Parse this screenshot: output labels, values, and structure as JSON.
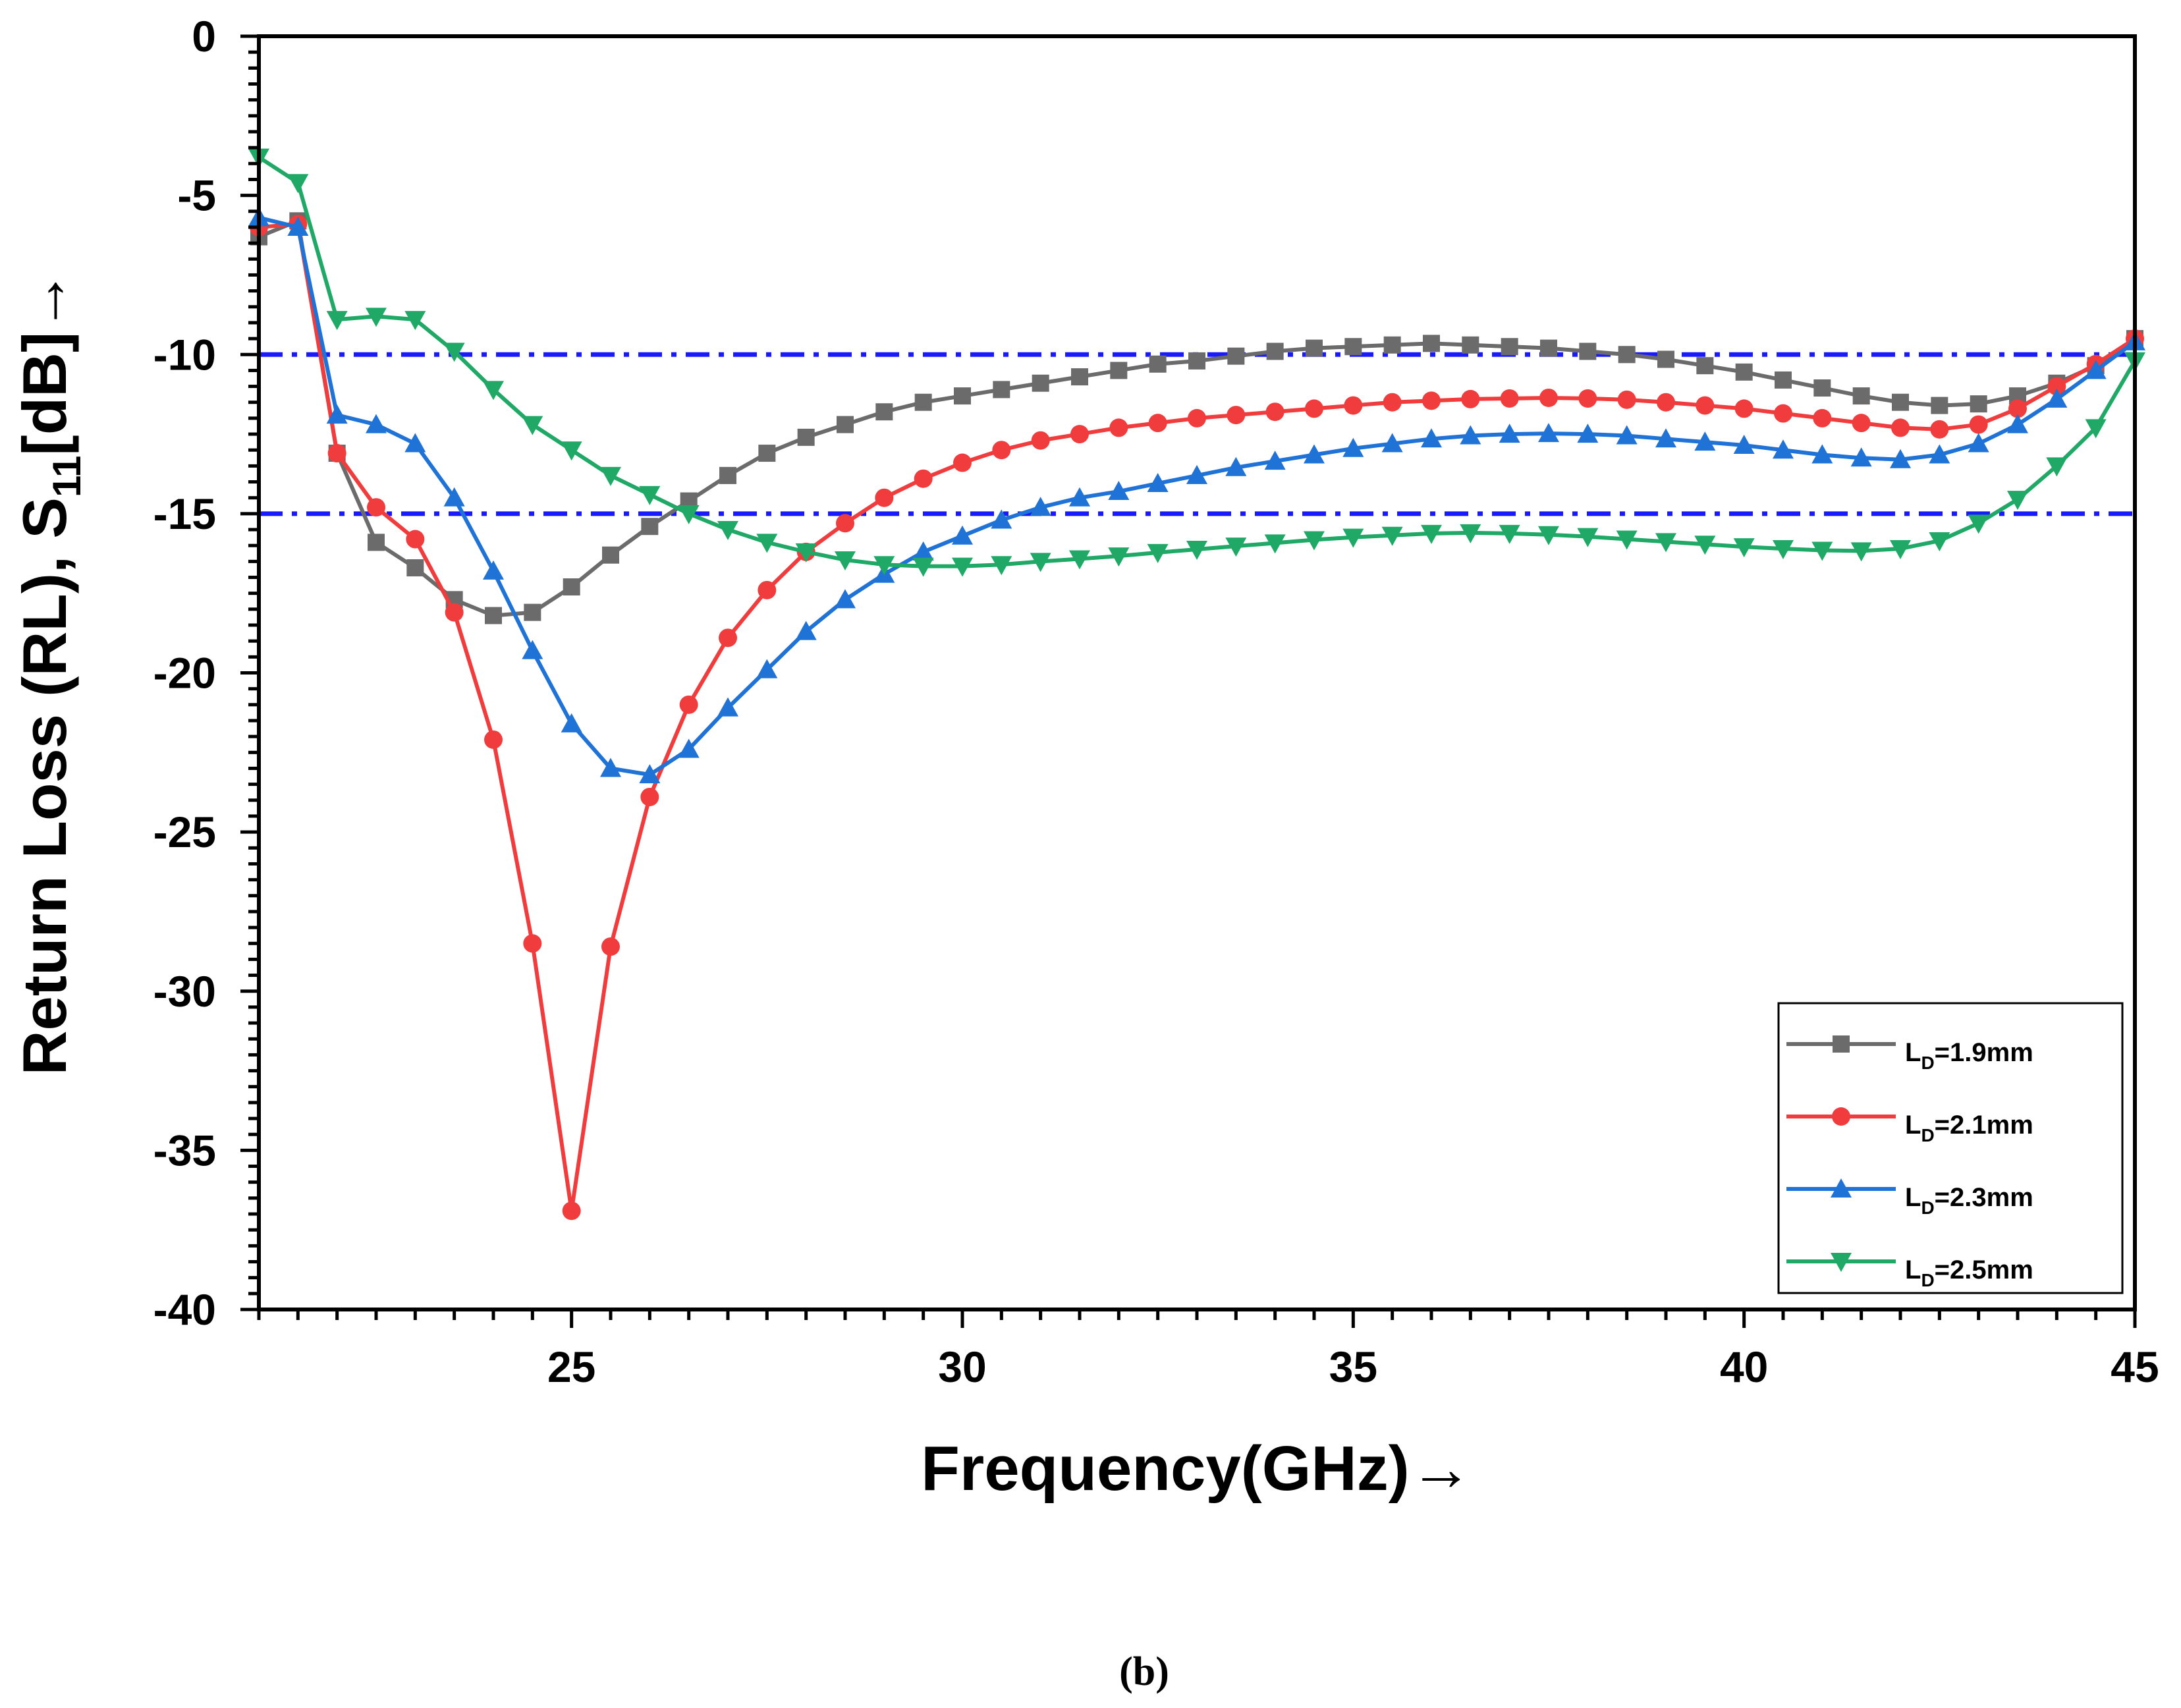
{
  "chart_data": {
    "type": "line",
    "title": "",
    "caption": "(b)",
    "xlabel": "Frequency(GHz)",
    "xlabel_arrow": "→",
    "ylabel_parts": [
      "Return Loss (RL), S",
      "11",
      "[dB]",
      "→"
    ],
    "xlim": [
      21,
      45
    ],
    "ylim": [
      -40,
      0
    ],
    "x_ticks": [
      25,
      30,
      35,
      40,
      45
    ],
    "x_tick_labels": [
      "25",
      "30",
      "35",
      "40",
      "45"
    ],
    "y_ticks": [
      0,
      -5,
      -10,
      -15,
      -20,
      -25,
      -30,
      -35,
      -40
    ],
    "y_tick_labels": [
      "0",
      "-5",
      "-10",
      "-15",
      "-20",
      "-25",
      "-30",
      "-35",
      "-40"
    ],
    "reference_lines": [
      {
        "y": -10,
        "color": "#1a1aff",
        "style": "dash-dot"
      },
      {
        "y": -15,
        "color": "#1a1aff",
        "style": "dash-dot"
      }
    ],
    "legend_position": "bottom-right",
    "x": [
      21,
      21.5,
      22,
      22.5,
      23,
      23.5,
      24,
      24.5,
      25,
      25.5,
      26,
      26.5,
      27,
      27.5,
      28,
      28.5,
      29,
      29.5,
      30,
      30.5,
      31,
      31.5,
      32,
      32.5,
      33,
      33.5,
      34,
      34.5,
      35,
      35.5,
      36,
      36.5,
      37,
      37.5,
      38,
      38.5,
      39,
      39.5,
      40,
      40.5,
      41,
      41.5,
      42,
      42.5,
      43,
      43.5,
      44,
      44.5,
      45
    ],
    "series": [
      {
        "name": "LD=1.9mm",
        "legend_main": "L",
        "legend_sub": "D",
        "legend_rest": "=1.9mm",
        "color": "#6b6b6b",
        "marker": "square",
        "values": [
          -6.3,
          -5.8,
          -13.1,
          -15.9,
          -16.7,
          -17.7,
          -18.2,
          -18.1,
          -17.3,
          -16.3,
          -15.4,
          -14.6,
          -13.8,
          -13.1,
          -12.6,
          -12.2,
          -11.8,
          -11.5,
          -11.3,
          -11.1,
          -10.9,
          -10.7,
          -10.5,
          -10.3,
          -10.2,
          -10.05,
          -9.9,
          -9.8,
          -9.75,
          -9.7,
          -9.65,
          -9.7,
          -9.75,
          -9.8,
          -9.9,
          -10.0,
          -10.15,
          -10.35,
          -10.55,
          -10.8,
          -11.05,
          -11.3,
          -11.5,
          -11.6,
          -11.55,
          -11.3,
          -10.9,
          -10.35,
          -9.5
        ]
      },
      {
        "name": "LD=2.1mm",
        "legend_main": "L",
        "legend_sub": "D",
        "legend_rest": "=2.1mm",
        "color": "#f03c3c",
        "marker": "circle",
        "values": [
          -6.0,
          -5.9,
          -13.1,
          -14.8,
          -15.8,
          -18.1,
          -22.1,
          -28.5,
          -36.9,
          -28.6,
          -23.9,
          -21.0,
          -18.9,
          -17.4,
          -16.2,
          -15.3,
          -14.5,
          -13.9,
          -13.4,
          -13.0,
          -12.7,
          -12.5,
          -12.3,
          -12.15,
          -12.0,
          -11.9,
          -11.8,
          -11.7,
          -11.6,
          -11.5,
          -11.45,
          -11.4,
          -11.38,
          -11.36,
          -11.38,
          -11.42,
          -11.5,
          -11.6,
          -11.7,
          -11.85,
          -12.0,
          -12.15,
          -12.3,
          -12.35,
          -12.2,
          -11.7,
          -11.0,
          -10.3,
          -9.5
        ]
      },
      {
        "name": "LD=2.3mm",
        "legend_main": "L",
        "legend_sub": "D",
        "legend_rest": "=2.3mm",
        "color": "#1f72d6",
        "marker": "triangle-up",
        "values": [
          -5.7,
          -6.0,
          -11.9,
          -12.2,
          -12.8,
          -14.5,
          -16.8,
          -19.3,
          -21.6,
          -23.0,
          -23.2,
          -22.4,
          -21.1,
          -19.9,
          -18.7,
          -17.7,
          -16.9,
          -16.2,
          -15.7,
          -15.2,
          -14.8,
          -14.5,
          -14.3,
          -14.05,
          -13.8,
          -13.55,
          -13.35,
          -13.15,
          -12.95,
          -12.8,
          -12.65,
          -12.55,
          -12.5,
          -12.48,
          -12.5,
          -12.55,
          -12.65,
          -12.75,
          -12.85,
          -13.0,
          -13.15,
          -13.25,
          -13.3,
          -13.15,
          -12.8,
          -12.2,
          -11.4,
          -10.5,
          -9.6
        ]
      },
      {
        "name": "LD=2.5mm",
        "legend_main": "L",
        "legend_sub": "D",
        "legend_rest": "=2.5mm",
        "color": "#1fa866",
        "marker": "triangle-down",
        "values": [
          -3.8,
          -4.6,
          -8.9,
          -8.8,
          -8.9,
          -9.9,
          -11.1,
          -12.2,
          -13.0,
          -13.8,
          -14.4,
          -15.0,
          -15.5,
          -15.9,
          -16.2,
          -16.45,
          -16.6,
          -16.65,
          -16.65,
          -16.6,
          -16.5,
          -16.42,
          -16.33,
          -16.22,
          -16.12,
          -16.02,
          -15.92,
          -15.82,
          -15.74,
          -15.68,
          -15.62,
          -15.6,
          -15.62,
          -15.66,
          -15.72,
          -15.8,
          -15.88,
          -15.96,
          -16.04,
          -16.1,
          -16.15,
          -16.17,
          -16.1,
          -15.85,
          -15.3,
          -14.55,
          -13.5,
          -12.3,
          -10.2
        ]
      }
    ]
  }
}
